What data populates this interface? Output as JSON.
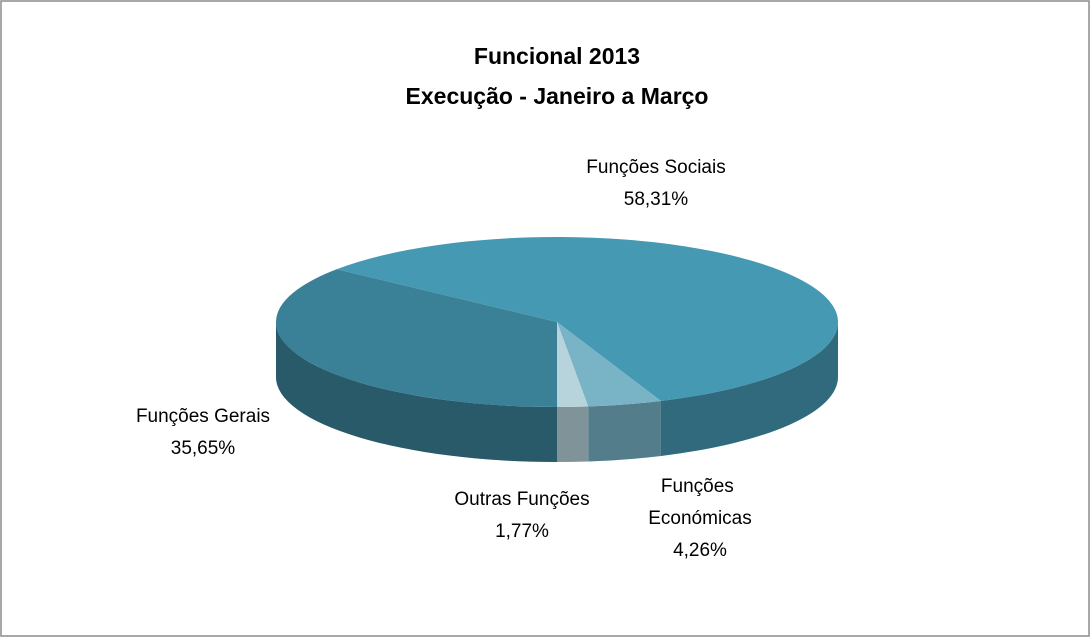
{
  "chart_data": {
    "type": "pie",
    "title": [
      "Funcional 2013",
      "Execução - Janeiro a Março"
    ],
    "categories": [
      "Funções Sociais",
      "Funções Económicas",
      "Outras Funções",
      "Funções Gerais"
    ],
    "values": [
      58.31,
      4.26,
      1.77,
      35.65
    ],
    "value_labels": [
      "58,31%",
      "4,26%",
      "1,77%",
      "35,65%"
    ],
    "colors": [
      "#4599b2",
      "#78b3c6",
      "#b7d3dc",
      "#3a8198"
    ]
  }
}
